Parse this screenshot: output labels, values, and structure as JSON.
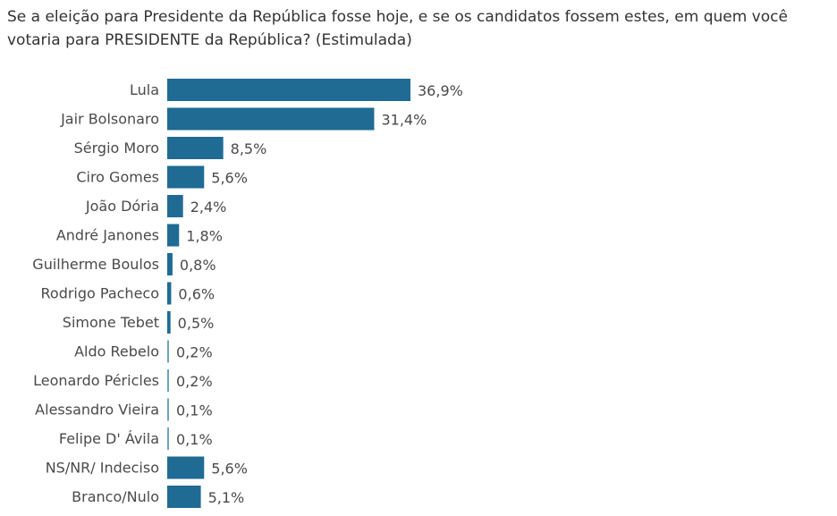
{
  "title": "Se a eleição para Presidente da República fosse hoje, e se os candidatos fossem estes, em quem você votaria para PRESIDENTE da República? (Estimulada)",
  "colors": {
    "bar": "#1f6b94",
    "text": "#4a4a4a"
  },
  "chart_data": {
    "type": "bar",
    "orientation": "horizontal",
    "title": "Se a eleição para Presidente da República fosse hoje, e se os candidatos fossem estes, em quem você votaria para PRESIDENTE da República? (Estimulada)",
    "categories": [
      "Lula",
      "Jair Bolsonaro",
      "Sérgio Moro",
      "Ciro Gomes",
      "João Dória",
      "André Janones",
      "Guilherme Boulos",
      "Rodrigo Pacheco",
      "Simone Tebet",
      "Aldo Rebelo",
      "Leonardo Péricles",
      "Alessandro Vieira",
      "Felipe D' Ávila",
      "NS/NR/ Indeciso",
      "Branco/Nulo"
    ],
    "values": [
      36.9,
      31.4,
      8.5,
      5.6,
      2.4,
      1.8,
      0.8,
      0.6,
      0.5,
      0.2,
      0.2,
      0.1,
      0.1,
      5.6,
      5.1
    ],
    "value_labels": [
      "36,9%",
      "31,4%",
      "8,5%",
      "5,6%",
      "2,4%",
      "1,8%",
      "0,8%",
      "0,6%",
      "0,5%",
      "0,2%",
      "0,2%",
      "0,1%",
      "0,1%",
      "5,6%",
      "5,1%"
    ],
    "xlabel": "",
    "ylabel": "",
    "grid": false,
    "legend": "none"
  }
}
